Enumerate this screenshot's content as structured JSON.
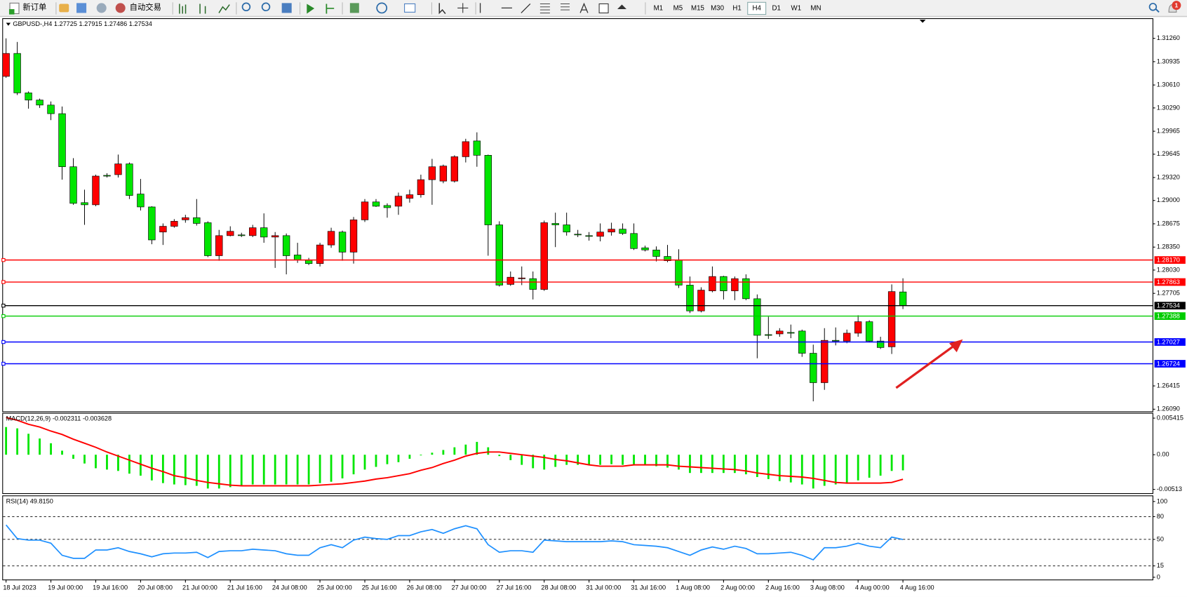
{
  "toolbar": {
    "new_order": "新订单",
    "auto_trading": "自动交易",
    "timeframes": [
      "M1",
      "M5",
      "M15",
      "M30",
      "H1",
      "H4",
      "D1",
      "W1",
      "MN"
    ],
    "active_timeframe": 5,
    "badge": "1"
  },
  "chart_data": [
    {
      "type": "candlestick",
      "title": "GBPUSD-,H4  1.27725 1.27915 1.27486 1.27534",
      "up_color": "#ff0000",
      "down_color": "#00e600",
      "categories": [
        "18 Jul 2023",
        null,
        null,
        null,
        "19 Jul 00:00",
        null,
        null,
        null,
        "19 Jul 16:00",
        null,
        null,
        null,
        "20 Jul 08:00",
        null,
        null,
        null,
        "21 Jul 00:00",
        null,
        null,
        null,
        "21 Jul 16:00",
        null,
        null,
        null,
        "24 Jul 08:00",
        null,
        null,
        null,
        "25 Jul 00:00",
        null,
        null,
        null,
        "25 Jul 16:00",
        null,
        null,
        null,
        "26 Jul 08:00",
        null,
        null,
        null,
        "27 Jul 00:00",
        null,
        null,
        null,
        "27 Jul 16:00",
        null,
        null,
        null,
        "28 Jul 08:00",
        null,
        null,
        null,
        "31 Jul 00:00",
        null,
        null,
        null,
        "31 Jul 16:00",
        null,
        null,
        null,
        "1 Aug 08:00",
        null,
        null,
        null,
        "2 Aug 00:00",
        null,
        null,
        null,
        "2 Aug 16:00",
        null,
        null,
        null,
        "3 Aug 08:00",
        null,
        null,
        null,
        "4 Aug 00:00",
        null,
        null,
        null,
        "4 Aug 16:00"
      ],
      "ohlc": [
        [
          1.3073,
          1.3126,
          1.3071,
          1.3105
        ],
        [
          1.3105,
          1.3121,
          1.3047,
          1.305
        ],
        [
          1.305,
          1.3052,
          1.3028,
          1.304
        ],
        [
          1.304,
          1.3042,
          1.3029,
          1.3033
        ],
        [
          1.3033,
          1.3038,
          1.3012,
          1.3021
        ],
        [
          1.3021,
          1.3031,
          1.2929,
          1.2947
        ],
        [
          1.2947,
          1.2959,
          1.2894,
          1.2896
        ],
        [
          1.2897,
          1.2915,
          1.2866,
          1.2894
        ],
        [
          1.2894,
          1.2936,
          1.2892,
          1.2934
        ],
        [
          1.2935,
          1.2938,
          1.2932,
          1.2934
        ],
        [
          1.2936,
          1.2964,
          1.2932,
          1.2951
        ],
        [
          1.2951,
          1.2953,
          1.2902,
          1.2907
        ],
        [
          1.2909,
          1.293,
          1.2886,
          1.2891
        ],
        [
          1.2891,
          1.2892,
          1.2839,
          1.2845
        ],
        [
          1.2856,
          1.2868,
          1.2838,
          1.2864
        ],
        [
          1.2864,
          1.2874,
          1.2862,
          1.2871
        ],
        [
          1.2873,
          1.288,
          1.2869,
          1.2876
        ],
        [
          1.2876,
          1.2902,
          1.2865,
          1.2868
        ],
        [
          1.2869,
          1.2871,
          1.2821,
          1.2823
        ],
        [
          1.2823,
          1.2859,
          1.2816,
          1.2851
        ],
        [
          1.2851,
          1.2864,
          1.285,
          1.2857
        ],
        [
          1.2852,
          1.2855,
          1.2849,
          1.2851
        ],
        [
          1.2851,
          1.2866,
          1.2849,
          1.2862
        ],
        [
          1.2862,
          1.2882,
          1.2841,
          1.2849
        ],
        [
          1.2849,
          1.2856,
          1.2806,
          1.2851
        ],
        [
          1.2851,
          1.2854,
          1.2797,
          1.2823
        ],
        [
          1.2824,
          1.2841,
          1.2813,
          1.2817
        ],
        [
          1.2817,
          1.282,
          1.281,
          1.2812
        ],
        [
          1.2812,
          1.2841,
          1.2808,
          1.2838
        ],
        [
          1.2838,
          1.2862,
          1.2834,
          1.2857
        ],
        [
          1.2856,
          1.2858,
          1.2816,
          1.2828
        ],
        [
          1.2828,
          1.2877,
          1.2812,
          1.2873
        ],
        [
          1.2873,
          1.2902,
          1.287,
          1.2898
        ],
        [
          1.2898,
          1.2902,
          1.2891,
          1.2892
        ],
        [
          1.2893,
          1.2896,
          1.2876,
          1.289
        ],
        [
          1.2892,
          1.2911,
          1.288,
          1.2906
        ],
        [
          1.2903,
          1.2915,
          1.2897,
          1.2908
        ],
        [
          1.2908,
          1.2936,
          1.2904,
          1.2929
        ],
        [
          1.2929,
          1.2958,
          1.2894,
          1.2947
        ],
        [
          1.2927,
          1.295,
          1.2924,
          1.2948
        ],
        [
          1.2927,
          1.2963,
          1.2925,
          1.2961
        ],
        [
          1.2961,
          1.2986,
          1.2953,
          1.2982
        ],
        [
          1.2983,
          1.2995,
          1.2947,
          1.2963
        ],
        [
          1.2963,
          1.2964,
          1.2823,
          1.2866
        ],
        [
          1.2866,
          1.2871,
          1.278,
          1.2782
        ],
        [
          1.2783,
          1.2801,
          1.2781,
          1.2793
        ],
        [
          1.2791,
          1.2808,
          1.2782,
          1.2792
        ],
        [
          1.2791,
          1.2801,
          1.2762,
          1.2776
        ],
        [
          1.2776,
          1.2872,
          1.2774,
          1.2869
        ],
        [
          1.2868,
          1.2883,
          1.2835,
          1.2866
        ],
        [
          1.2866,
          1.2883,
          1.2851,
          1.2856
        ],
        [
          1.2853,
          1.2859,
          1.2849,
          1.2852
        ],
        [
          1.2851,
          1.2856,
          1.2844,
          1.285
        ],
        [
          1.285,
          1.2868,
          1.2843,
          1.2856
        ],
        [
          1.2856,
          1.2869,
          1.2851,
          1.286
        ],
        [
          1.286,
          1.2868,
          1.2852,
          1.2854
        ],
        [
          1.2854,
          1.2868,
          1.2831,
          1.2833
        ],
        [
          1.2834,
          1.2837,
          1.2829,
          1.2831
        ],
        [
          1.2831,
          1.2836,
          1.2815,
          1.2822
        ],
        [
          1.2822,
          1.2838,
          1.2814,
          1.2816
        ],
        [
          1.2817,
          1.2832,
          1.2778,
          1.2782
        ],
        [
          1.2782,
          1.2794,
          1.2743,
          1.2746
        ],
        [
          1.2746,
          1.2779,
          1.2744,
          1.2775
        ],
        [
          1.2774,
          1.2808,
          1.2772,
          1.2794
        ],
        [
          1.2794,
          1.2795,
          1.2762,
          1.2774
        ],
        [
          1.2774,
          1.2794,
          1.2761,
          1.2791
        ],
        [
          1.2791,
          1.2797,
          1.2761,
          1.2763
        ],
        [
          1.2763,
          1.2769,
          1.268,
          1.2712
        ],
        [
          1.2713,
          1.2738,
          1.2707,
          1.2712
        ],
        [
          1.2714,
          1.2722,
          1.271,
          1.2718
        ],
        [
          1.2716,
          1.2727,
          1.2708,
          1.2715
        ],
        [
          1.2718,
          1.272,
          1.2682,
          1.2687
        ],
        [
          1.2687,
          1.2699,
          1.262,
          1.2646
        ],
        [
          1.2646,
          1.2722,
          1.2636,
          1.2705
        ],
        [
          1.2705,
          1.2723,
          1.2698,
          1.2704
        ],
        [
          1.2704,
          1.272,
          1.2701,
          1.2715
        ],
        [
          1.2715,
          1.274,
          1.271,
          1.2731
        ],
        [
          1.2731,
          1.2733,
          1.2702,
          1.2704
        ],
        [
          1.2704,
          1.271,
          1.2693,
          1.2695
        ],
        [
          1.2696,
          1.2783,
          1.2686,
          1.2773
        ],
        [
          1.27725,
          1.27915,
          1.27486,
          1.27534
        ]
      ],
      "ylim": [
        1.2606,
        1.3153
      ],
      "yticks": [
        {
          "value": 1.3126,
          "label": "1.31260"
        },
        {
          "value": 1.30935,
          "label": "1.30935"
        },
        {
          "value": 1.3061,
          "label": "1.30610"
        },
        {
          "value": 1.3029,
          "label": "1.30290"
        },
        {
          "value": 1.29965,
          "label": "1.29965"
        },
        {
          "value": 1.29645,
          "label": "1.29645"
        },
        {
          "value": 1.2932,
          "label": "1.29320"
        },
        {
          "value": 1.29,
          "label": "1.29000"
        },
        {
          "value": 1.28675,
          "label": "1.28675"
        },
        {
          "value": 1.2835,
          "label": "1.28350"
        },
        {
          "value": 1.2803,
          "label": "1.28030"
        },
        {
          "value": 1.27705,
          "label": "1.27705"
        },
        {
          "value": 1.26415,
          "label": "1.26415"
        },
        {
          "value": 1.2609,
          "label": "1.26090"
        }
      ],
      "levels": [
        {
          "value": 1.2817,
          "label": "1.28170",
          "color": "#ff0000"
        },
        {
          "value": 1.27863,
          "label": "1.27863",
          "color": "#ff0000"
        },
        {
          "value": 1.27534,
          "label": "1.27534",
          "color": "#000000"
        },
        {
          "value": 1.27388,
          "label": "1.27388",
          "color": "#00cc00"
        },
        {
          "value": 1.27027,
          "label": "1.27027",
          "color": "#0000ff"
        },
        {
          "value": 1.26724,
          "label": "1.26724",
          "color": "#0000ff"
        }
      ]
    },
    {
      "type": "macd",
      "title": "MACD(12,26,9) -0.002311 -0.003628",
      "histogram_color": "#00e600",
      "signal_color": "#ff0000",
      "histogram": [
        0.0041,
        0.0039,
        0.0031,
        0.0024,
        0.0017,
        0.0006,
        -0.0006,
        -0.0013,
        -0.002,
        -0.0022,
        -0.0024,
        -0.0028,
        -0.0031,
        -0.0038,
        -0.0042,
        -0.0044,
        -0.0045,
        -0.0046,
        -0.005,
        -0.005,
        -0.0048,
        -0.0045,
        -0.0044,
        -0.0044,
        -0.0044,
        -0.0044,
        -0.0044,
        -0.0044,
        -0.0042,
        -0.004,
        -0.0035,
        -0.0029,
        -0.0022,
        -0.0018,
        -0.0014,
        -0.0011,
        -0.0006,
        -0.0001,
        0.0003,
        0.0007,
        0.0011,
        0.0015,
        0.0019,
        0.0011,
        -0.0002,
        -0.0008,
        -0.0015,
        -0.002,
        -0.0022,
        -0.0018,
        -0.0015,
        -0.0015,
        -0.0015,
        -0.0015,
        -0.0014,
        -0.0015,
        -0.0015,
        -0.0015,
        -0.0017,
        -0.0019,
        -0.0022,
        -0.0027,
        -0.0027,
        -0.0027,
        -0.0027,
        -0.0027,
        -0.0029,
        -0.0033,
        -0.0036,
        -0.0039,
        -0.0041,
        -0.0044,
        -0.005,
        -0.0046,
        -0.0044,
        -0.0042,
        -0.0038,
        -0.0034,
        -0.0031,
        -0.0024,
        -0.002311
      ],
      "signal": [
        0.0055,
        0.0051,
        0.0045,
        0.0041,
        0.0035,
        0.003,
        0.0023,
        0.0017,
        0.0011,
        0.0004,
        -0.0002,
        -0.0008,
        -0.0014,
        -0.002,
        -0.0025,
        -0.0031,
        -0.0034,
        -0.0038,
        -0.0041,
        -0.0043,
        -0.0045,
        -0.0046,
        -0.0046,
        -0.0046,
        -0.0046,
        -0.0046,
        -0.0046,
        -0.0046,
        -0.0045,
        -0.0044,
        -0.0043,
        -0.0041,
        -0.0039,
        -0.0036,
        -0.0034,
        -0.0031,
        -0.0028,
        -0.0023,
        -0.0019,
        -0.0013,
        -0.0008,
        -0.0002,
        0.0002,
        0.0004,
        0.0004,
        0.0002,
        0,
        -0.0002,
        -0.0004,
        -0.0007,
        -0.0009,
        -0.0012,
        -0.0015,
        -0.0017,
        -0.0017,
        -0.0017,
        -0.0015,
        -0.0015,
        -0.0015,
        -0.0015,
        -0.0017,
        -0.0018,
        -0.0019,
        -0.002,
        -0.0021,
        -0.0022,
        -0.0024,
        -0.0027,
        -0.0029,
        -0.0031,
        -0.0032,
        -0.0033,
        -0.0035,
        -0.0038,
        -0.0041,
        -0.0042,
        -0.0042,
        -0.0042,
        -0.0042,
        -0.0041,
        -0.003628
      ],
      "ylim": [
        -0.00569,
        0.00608
      ],
      "yticks": [
        0.005415,
        {
          "value": 0,
          "label": "0.00"
        },
        -0.00513
      ]
    },
    {
      "type": "line",
      "title": "RSI(14) 49.8150",
      "color": "#1e90ff",
      "values": [
        69,
        51,
        49,
        49,
        45,
        29,
        25,
        25,
        36,
        36,
        39,
        34,
        31,
        27,
        31,
        32,
        32,
        33,
        26,
        34,
        35,
        35,
        37,
        36,
        35,
        31,
        29,
        29,
        39,
        43,
        39,
        49,
        53,
        51,
        50,
        55,
        55,
        60,
        63,
        58,
        64,
        68,
        64,
        43,
        33,
        35,
        35,
        33,
        49,
        48,
        47,
        47,
        47,
        47,
        48,
        47,
        43,
        42,
        41,
        39,
        34,
        29,
        36,
        40,
        37,
        41,
        38,
        31,
        31,
        32,
        33,
        29,
        23,
        39,
        39,
        41,
        45,
        41,
        39,
        53,
        49.815
      ],
      "ylim": [
        -3,
        107
      ],
      "yticks": [
        100,
        80,
        50,
        15,
        0
      ],
      "levels": [
        80,
        50,
        15
      ]
    }
  ]
}
